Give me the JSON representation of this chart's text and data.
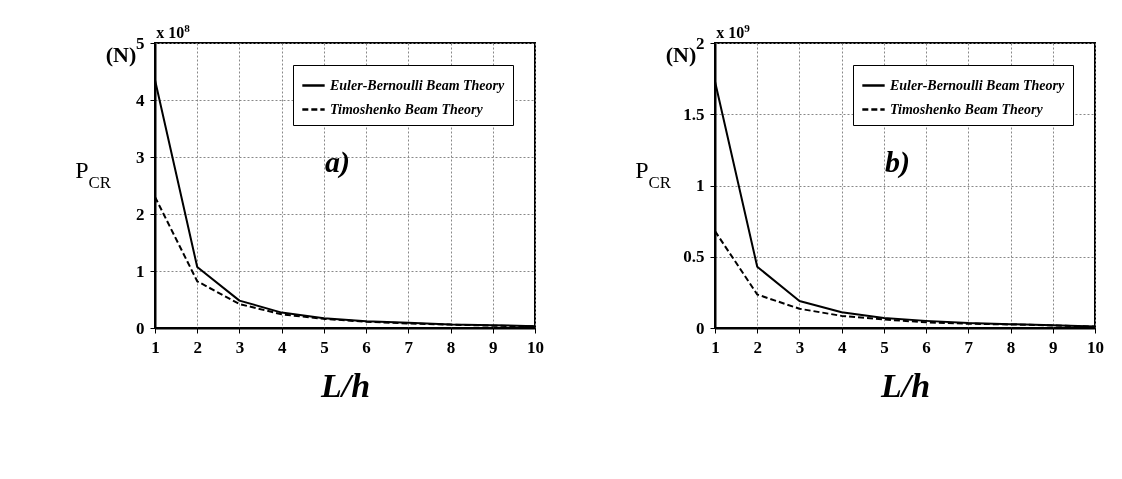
{
  "chart_data": [
    {
      "type": "line",
      "xlabel": "L/h",
      "ylabel": "P$_{CR}$",
      "annotations": [
        "(N)",
        "x 10$^{8}$",
        "a)"
      ],
      "x": [
        1,
        2,
        3,
        4,
        5,
        6,
        7,
        8,
        9,
        10
      ],
      "xlim": [
        1,
        10
      ],
      "xticks": [
        1,
        2,
        3,
        4,
        5,
        6,
        7,
        8,
        9,
        10
      ],
      "ylim": [
        0,
        5
      ],
      "yticks": [
        0,
        1,
        2,
        3,
        4,
        5
      ],
      "grid": true,
      "legend": "top right",
      "series": [
        {
          "name": "Euler-Bernoulli Beam Theory",
          "color": "#000000",
          "line_style": "solid",
          "values": [
            4.35,
            1.07,
            0.48,
            0.27,
            0.17,
            0.12,
            0.09,
            0.06,
            0.05,
            0.03
          ]
        },
        {
          "name": "Timoshenko Beam Theory",
          "color": "#000000",
          "line_style": "dashed",
          "values": [
            2.3,
            0.82,
            0.42,
            0.24,
            0.16,
            0.11,
            0.08,
            0.06,
            0.04,
            0.03
          ]
        }
      ]
    },
    {
      "type": "line",
      "xlabel": "L/h",
      "ylabel": "P$_{CR}$",
      "annotations": [
        "(N)",
        "x 10$^{9}$",
        "b)"
      ],
      "x": [
        1,
        2,
        3,
        4,
        5,
        6,
        7,
        8,
        9,
        10
      ],
      "xlim": [
        1,
        10
      ],
      "xticks": [
        1,
        2,
        3,
        4,
        5,
        6,
        7,
        8,
        9,
        10
      ],
      "ylim": [
        0,
        2
      ],
      "yticks": [
        0,
        0.5,
        1,
        1.5,
        2
      ],
      "grid": true,
      "legend": "top right",
      "series": [
        {
          "name": "Euler-Bernoulli Beam Theory",
          "color": "#000000",
          "line_style": "solid",
          "values": [
            1.73,
            0.43,
            0.19,
            0.11,
            0.07,
            0.05,
            0.035,
            0.027,
            0.02,
            0.01
          ]
        },
        {
          "name": "Timoshenko Beam Theory",
          "color": "#000000",
          "line_style": "dashed",
          "values": [
            0.68,
            0.235,
            0.135,
            0.085,
            0.06,
            0.04,
            0.03,
            0.025,
            0.018,
            0.01
          ]
        }
      ]
    }
  ]
}
